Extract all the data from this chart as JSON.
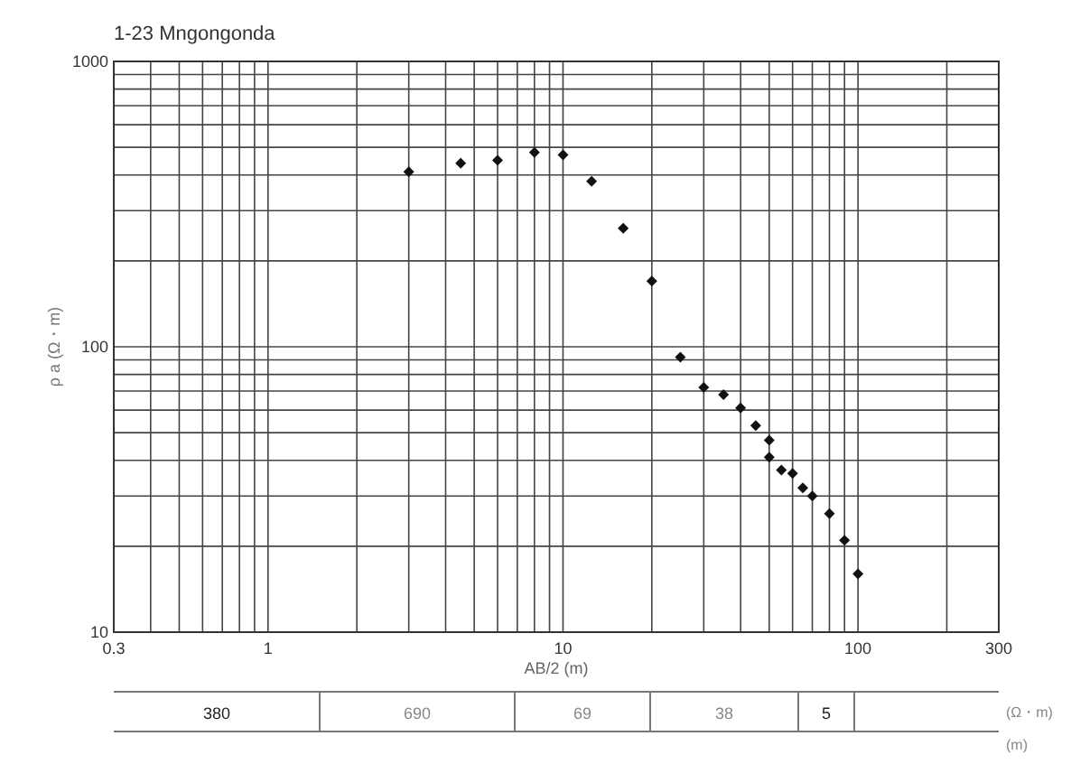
{
  "chart_data": {
    "type": "scatter",
    "title": "1-23 Mngongonda",
    "xlabel": "AB/2 (m)",
    "ylabel": "ρ a (Ω・m)",
    "log": "xy",
    "grid": true,
    "marker": "diamond",
    "xlim": [
      0.3,
      300
    ],
    "xticks": [
      0.3,
      1,
      10,
      100,
      300
    ],
    "ylim": [
      10,
      1000
    ],
    "yticks": [
      10,
      100,
      1000
    ],
    "series": [
      {
        "color": "#111111",
        "x": [
          3,
          4.5,
          6,
          8,
          10,
          12.5,
          16,
          20,
          25,
          30,
          35,
          40,
          45,
          50,
          50,
          55,
          60,
          65,
          70,
          80,
          90,
          100
        ],
        "values": [
          410,
          440,
          450,
          480,
          470,
          380,
          260,
          170,
          92,
          72,
          68,
          61,
          53,
          47,
          41,
          37,
          36,
          32,
          30,
          26,
          21,
          16
        ]
      }
    ],
    "annotations": [
      "380",
      "690",
      "69",
      "38",
      "5",
      "(Ω・m)",
      "(m)"
    ]
  }
}
